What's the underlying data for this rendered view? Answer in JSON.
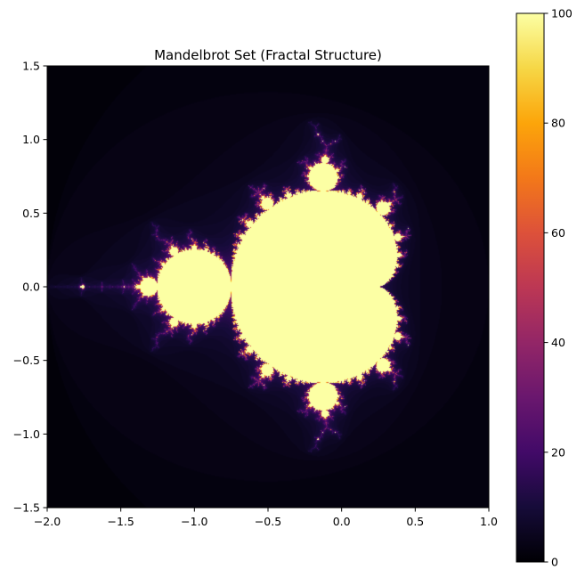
{
  "chart_data": {
    "type": "heatmap",
    "title": "Mandelbrot Set (Fractal Structure)",
    "xlabel": "",
    "ylabel": "",
    "xlim": [
      -2.0,
      1.0
    ],
    "ylim": [
      -1.5,
      1.5
    ],
    "x_ticks": [
      -2.0,
      -1.5,
      -1.0,
      -0.5,
      0.0,
      0.5,
      1.0
    ],
    "x_tick_labels": [
      "−2.0",
      "−1.5",
      "−1.0",
      "−0.5",
      "0.0",
      "0.5",
      "1.0"
    ],
    "y_ticks": [
      -1.5,
      -1.0,
      -0.5,
      0.0,
      0.5,
      1.0,
      1.5
    ],
    "y_tick_labels": [
      "−1.5",
      "−1.0",
      "−0.5",
      "0.0",
      "0.5",
      "1.0",
      "1.5"
    ],
    "max_iterations": 100,
    "colormap": "inferno",
    "colorbar": {
      "range": [
        0,
        100
      ],
      "ticks": [
        0,
        20,
        40,
        60,
        80,
        100
      ],
      "tick_labels": [
        "0",
        "20",
        "40",
        "60",
        "80",
        "100"
      ]
    },
    "grid": false
  }
}
